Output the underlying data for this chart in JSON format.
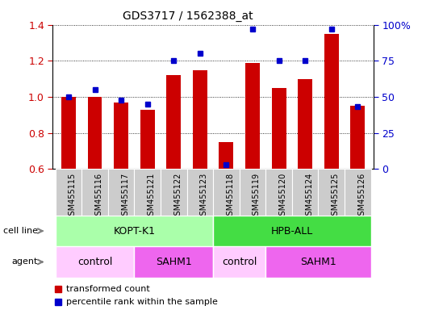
{
  "title": "GDS3717 / 1562388_at",
  "samples": [
    "GSM455115",
    "GSM455116",
    "GSM455117",
    "GSM455121",
    "GSM455122",
    "GSM455123",
    "GSM455118",
    "GSM455119",
    "GSM455120",
    "GSM455124",
    "GSM455125",
    "GSM455126"
  ],
  "transformed_count": [
    1.0,
    1.0,
    0.97,
    0.93,
    1.12,
    1.15,
    0.75,
    1.19,
    1.05,
    1.1,
    1.35,
    0.95
  ],
  "percentile_rank": [
    50,
    55,
    48,
    45,
    75,
    80,
    3,
    97,
    75,
    75,
    97,
    43
  ],
  "ylim_left": [
    0.6,
    1.4
  ],
  "ylim_right": [
    0,
    100
  ],
  "bar_color": "#cc0000",
  "dot_color": "#0000cc",
  "cell_line_groups": [
    {
      "label": "KOPT-K1",
      "start": 0,
      "end": 5,
      "color": "#aaffaa"
    },
    {
      "label": "HPB-ALL",
      "start": 6,
      "end": 11,
      "color": "#44dd44"
    }
  ],
  "agent_groups": [
    {
      "label": "control",
      "start": 0,
      "end": 2,
      "color": "#ffccff"
    },
    {
      "label": "SAHM1",
      "start": 3,
      "end": 5,
      "color": "#ee66ee"
    },
    {
      "label": "control",
      "start": 6,
      "end": 7,
      "color": "#ffccff"
    },
    {
      "label": "SAHM1",
      "start": 8,
      "end": 11,
      "color": "#ee66ee"
    }
  ],
  "left_ylabel_color": "#cc0000",
  "right_ylabel_color": "#0000cc",
  "yticks_left": [
    0.6,
    0.8,
    1.0,
    1.2,
    1.4
  ],
  "yticks_right": [
    0,
    25,
    50,
    75,
    100
  ],
  "xlabel_bg": "#cccccc",
  "cell_line_label": "cell line",
  "agent_label": "agent",
  "legend": [
    {
      "label": "transformed count",
      "color": "#cc0000"
    },
    {
      "label": "percentile rank within the sample",
      "color": "#0000cc"
    }
  ]
}
